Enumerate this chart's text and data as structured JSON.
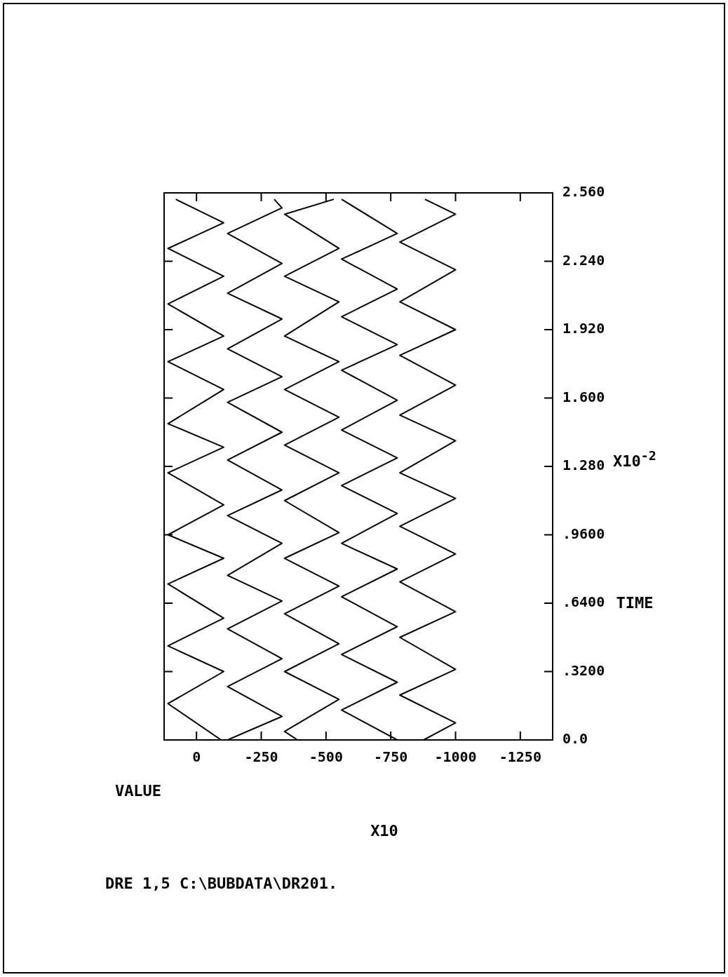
{
  "chart_data": {
    "type": "line",
    "xlabel": "VALUE",
    "ylabel": "TIME",
    "annotations": [
      "X10",
      "X10$^{-2}$",
      "DRE 1,5  C:\\BUBDATA\\DR201."
    ],
    "xlim": [
      125,
      -1375
    ],
    "xticks": [
      0,
      -250,
      -500,
      -750,
      -1000,
      -1250
    ],
    "ylim": [
      0,
      2.56
    ],
    "yticks": [
      {
        "value": 0,
        "label": "0.0"
      },
      {
        "value": 0.32,
        "label": ".3200"
      },
      {
        "value": 0.64,
        "label": ".6400"
      },
      {
        "value": 0.96,
        "label": ".9600"
      },
      {
        "value": 1.28,
        "label": "1.280"
      },
      {
        "value": 1.6,
        "label": "1.600"
      },
      {
        "value": 1.92,
        "label": "1.920"
      },
      {
        "value": 2.24,
        "label": "2.240"
      },
      {
        "value": 2.56,
        "label": "2.560"
      }
    ],
    "marker": "none",
    "series": [
      {
        "color": "#000000",
        "x": [
          -95,
          110,
          -105,
          110,
          -105,
          110,
          -105,
          110,
          -105,
          110,
          -105,
          110,
          -105,
          110,
          -105,
          110,
          -105,
          110,
          -105,
          80
        ],
        "values": [
          0,
          0.17,
          0.32,
          0.44,
          0.57,
          0.73,
          0.85,
          0.96,
          1.1,
          1.25,
          1.37,
          1.48,
          1.64,
          1.77,
          1.89,
          2.04,
          2.17,
          2.3,
          2.42,
          2.53
        ]
      },
      {
        "color": "#000000",
        "x": [
          -120,
          -330,
          -120,
          -330,
          -120,
          -330,
          -120,
          -330,
          -120,
          -330,
          -120,
          -330,
          -120,
          -330,
          -120,
          -330,
          -120,
          -330,
          -120,
          -330,
          -300
        ],
        "values": [
          0,
          0.11,
          0.25,
          0.38,
          0.52,
          0.65,
          0.77,
          0.92,
          1.05,
          1.17,
          1.31,
          1.44,
          1.58,
          1.7,
          1.83,
          1.97,
          2.09,
          2.23,
          2.37,
          2.49,
          2.53
        ]
      },
      {
        "color": "#000000",
        "x": [
          -390,
          -340,
          -550,
          -340,
          -550,
          -340,
          -550,
          -340,
          -550,
          -340,
          -550,
          -340,
          -550,
          -340,
          -550,
          -340,
          -550,
          -340,
          -550,
          -340,
          -530
        ],
        "values": [
          0,
          0.04,
          0.19,
          0.32,
          0.45,
          0.59,
          0.72,
          0.85,
          0.97,
          1.12,
          1.25,
          1.38,
          1.51,
          1.64,
          1.77,
          1.89,
          2.05,
          2.17,
          2.3,
          2.46,
          2.53
        ]
      },
      {
        "color": "#000000",
        "x": [
          -775,
          -560,
          -775,
          -560,
          -775,
          -560,
          -775,
          -560,
          -775,
          -560,
          -775,
          -560,
          -775,
          -560,
          -775,
          -560,
          -775,
          -560,
          -775,
          -560
        ],
        "values": [
          0,
          0.14,
          0.27,
          0.4,
          0.53,
          0.67,
          0.8,
          0.92,
          1.06,
          1.19,
          1.32,
          1.45,
          1.59,
          1.73,
          1.85,
          1.98,
          2.11,
          2.25,
          2.37,
          2.53
        ]
      },
      {
        "color": "#000000",
        "x": [
          -877,
          -1000,
          -785,
          -1000,
          -785,
          -1000,
          -785,
          -1000,
          -785,
          -1000,
          -785,
          -1000,
          -785,
          -1000,
          -785,
          -1000,
          -785,
          -1000,
          -785,
          -1000,
          -882
        ],
        "values": [
          0,
          0.08,
          0.21,
          0.33,
          0.48,
          0.6,
          0.74,
          0.87,
          1.0,
          1.13,
          1.25,
          1.4,
          1.52,
          1.66,
          1.8,
          1.92,
          2.05,
          2.2,
          2.33,
          2.46,
          2.53
        ]
      }
    ]
  }
}
